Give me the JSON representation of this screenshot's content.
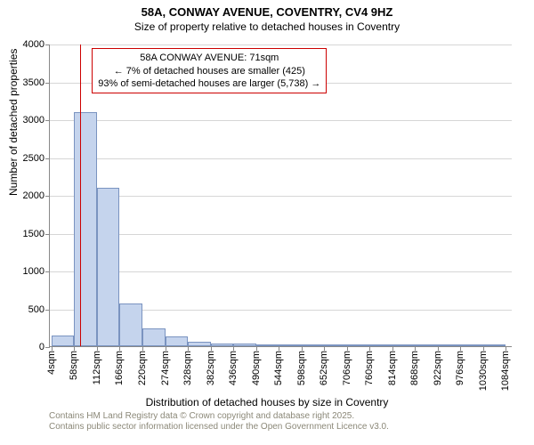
{
  "title_line1": "58A, CONWAY AVENUE, COVENTRY, CV4 9HZ",
  "title_line2": "Size of property relative to detached houses in Coventry",
  "ylabel": "Number of detached properties",
  "xlabel": "Distribution of detached houses by size in Coventry",
  "attribution_line1": "Contains HM Land Registry data © Crown copyright and database right 2025.",
  "attribution_line2": "Contains public sector information licensed under the Open Government Licence v3.0.",
  "chart": {
    "type": "histogram",
    "background_color": "#ffffff",
    "grid_color": "#d6d6d6",
    "axis_color": "#888888",
    "bar_fill": "#c5d4ed",
    "bar_stroke": "#7a93c0",
    "bar_opacity": 1.0,
    "ylim": [
      0,
      4000
    ],
    "yticks": [
      0,
      500,
      1000,
      1500,
      2000,
      2500,
      3000,
      3500,
      4000
    ],
    "xlim": [
      0,
      1100
    ],
    "xticks": [
      4,
      58,
      112,
      166,
      220,
      274,
      328,
      382,
      436,
      490,
      544,
      598,
      652,
      706,
      760,
      814,
      868,
      922,
      976,
      1030,
      1084
    ],
    "xtick_suffix": "sqm",
    "bin_width": 54,
    "bars": [
      {
        "x0": 4,
        "count": 140
      },
      {
        "x0": 58,
        "count": 3100
      },
      {
        "x0": 112,
        "count": 2100
      },
      {
        "x0": 166,
        "count": 560
      },
      {
        "x0": 220,
        "count": 240
      },
      {
        "x0": 274,
        "count": 130
      },
      {
        "x0": 328,
        "count": 60
      },
      {
        "x0": 382,
        "count": 40
      },
      {
        "x0": 436,
        "count": 30
      },
      {
        "x0": 490,
        "count": 20
      },
      {
        "x0": 544,
        "count": 10
      },
      {
        "x0": 598,
        "count": 8
      },
      {
        "x0": 652,
        "count": 6
      },
      {
        "x0": 706,
        "count": 5
      },
      {
        "x0": 760,
        "count": 4
      },
      {
        "x0": 814,
        "count": 3
      },
      {
        "x0": 868,
        "count": 3
      },
      {
        "x0": 922,
        "count": 2
      },
      {
        "x0": 976,
        "count": 2
      },
      {
        "x0": 1030,
        "count": 2
      }
    ],
    "marker": {
      "x": 71,
      "color": "#cc0000"
    },
    "annotation": {
      "line1": "58A CONWAY AVENUE: 71sqm",
      "line2": "← 7% of detached houses are smaller (425)",
      "line3": "93% of semi-detached houses are larger (5,738) →",
      "border_color": "#cc0000",
      "x_left_data": 100,
      "y_top_data": 3950,
      "fontsize": 11
    },
    "title_fontsize": 13,
    "label_fontsize": 12,
    "tick_fontsize": 11
  }
}
